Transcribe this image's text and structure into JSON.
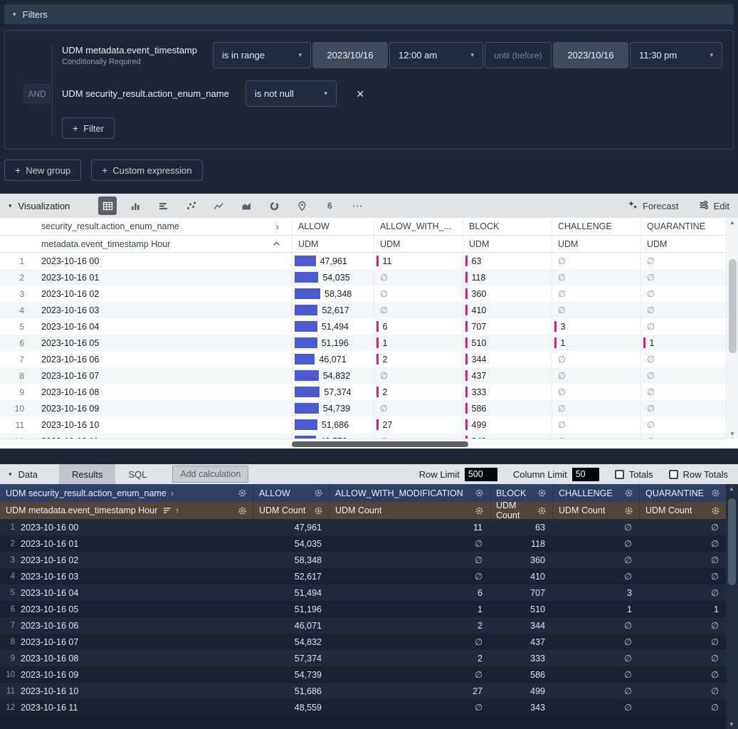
{
  "icons": {
    "collapse": "▾",
    "dropdown": "▾",
    "chevron_right": "›",
    "close": "×",
    "plus": "+",
    "sort_asc": "↑",
    "more": "⋯",
    "scroll_up": "▲",
    "scroll_down": "▼"
  },
  "colors": {
    "bar_allow": "#4a5ad1",
    "bar_other": "#e2198c",
    "pivot_header_bg": "#2d4066",
    "measure_header_bg": "#554538"
  },
  "filters": {
    "title": "Filters",
    "group_operator": "AND",
    "add_filter": "Filter",
    "row1": {
      "field": "UDM metadata.event_timestamp",
      "note": "Conditionally Required",
      "operator": "is in range",
      "start_date": "2023/10/16",
      "start_time": "12:00 am",
      "until": "until (before)",
      "end_date": "2023/10/16",
      "end_time": "11:30 pm"
    },
    "row2": {
      "field": "UDM security_result.action_enum_name",
      "operator": "is not null"
    }
  },
  "actions": {
    "new_group": "New group",
    "custom_expression": "Custom expression"
  },
  "viz": {
    "title": "Visualization",
    "forecast": "Forecast",
    "edit": "Edit",
    "pivot_label": "security_result.action_enum_name",
    "row_label": "metadata.event_timestamp Hour",
    "measure": "UDM",
    "columns": [
      "ALLOW",
      "ALLOW_WITH_...",
      "BLOCK",
      "CHALLENGE",
      "QUARANTINE"
    ],
    "toolbar": [
      "table-chart",
      "column-chart",
      "row-chart",
      "scatter-chart",
      "line-chart",
      "area-chart",
      "donut-chart",
      "map-chart",
      "single-value",
      "more-options"
    ],
    "single_value_glyph": "6"
  },
  "data_panel": {
    "title": "Data",
    "tabs": {
      "results": "Results",
      "sql": "SQL"
    },
    "add_calculation": "Add calculation",
    "row_limit_label": "Row Limit",
    "row_limit": "500",
    "column_limit_label": "Column Limit",
    "column_limit": "50",
    "totals": "Totals",
    "row_totals": "Row Totals",
    "pivot_field": "UDM security_result.action_enum_name",
    "row_field": "UDM metadata.event_timestamp Hour",
    "measure": "UDM Count",
    "columns": [
      "ALLOW",
      "ALLOW_WITH_MODIFICATION",
      "BLOCK",
      "CHALLENGE",
      "QUARANTINE"
    ]
  },
  "null_symbol": "∅",
  "chart_data": {
    "type": "table",
    "title": "UDM Count by metadata.event_timestamp Hour pivoted by security_result.action_enum_name",
    "x": [
      "2023-10-16 00",
      "2023-10-16 01",
      "2023-10-16 02",
      "2023-10-16 03",
      "2023-10-16 04",
      "2023-10-16 05",
      "2023-10-16 06",
      "2023-10-16 07",
      "2023-10-16 08",
      "2023-10-16 09",
      "2023-10-16 10",
      "2023-10-16 11"
    ],
    "series": [
      {
        "name": "ALLOW",
        "values": [
          47961,
          54035,
          58348,
          52617,
          51494,
          51196,
          46071,
          54832,
          57374,
          54739,
          51686,
          48559
        ]
      },
      {
        "name": "ALLOW_WITH_MODIFICATION",
        "values": [
          11,
          null,
          null,
          null,
          6,
          1,
          2,
          null,
          2,
          null,
          27,
          null
        ]
      },
      {
        "name": "BLOCK",
        "values": [
          63,
          118,
          360,
          410,
          707,
          510,
          344,
          437,
          333,
          586,
          499,
          343
        ]
      },
      {
        "name": "CHALLENGE",
        "values": [
          null,
          null,
          null,
          null,
          3,
          1,
          null,
          null,
          null,
          null,
          null,
          null
        ]
      },
      {
        "name": "QUARANTINE",
        "values": [
          null,
          null,
          null,
          null,
          null,
          1,
          null,
          null,
          null,
          null,
          null,
          null
        ]
      }
    ]
  }
}
